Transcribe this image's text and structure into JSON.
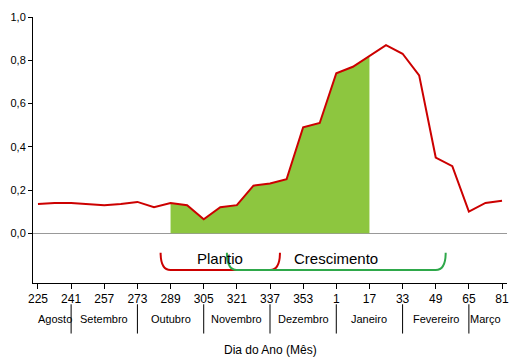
{
  "chart_data": {
    "type": "line",
    "x_label": "Dia do Ano (Mês)",
    "categories": [
      "225",
      null,
      "241",
      null,
      "257",
      null,
      "273",
      null,
      "289",
      null,
      "305",
      null,
      "321",
      null,
      "337",
      null,
      "353",
      null,
      "1",
      null,
      "17",
      null,
      "33",
      null,
      "49",
      null,
      "65",
      null,
      "81"
    ],
    "series": [
      {
        "type": "area",
        "color": "#8dc63f",
        "values": [
          null,
          null,
          null,
          null,
          null,
          null,
          null,
          null,
          0.14,
          0.13,
          0.065,
          0.12,
          0.13,
          0.22,
          0.23,
          0.25,
          0.49,
          0.51,
          0.74,
          0.77,
          0.82,
          null,
          null,
          null,
          null,
          null,
          null,
          null,
          null
        ]
      },
      {
        "type": "line",
        "color": "#cc0000",
        "values": [
          0.135,
          0.14,
          0.14,
          0.135,
          0.13,
          0.135,
          0.145,
          0.12,
          0.14,
          0.13,
          0.065,
          0.12,
          0.13,
          0.22,
          0.23,
          0.25,
          0.49,
          0.51,
          0.74,
          0.77,
          0.82,
          0.87,
          0.83,
          0.73,
          0.35,
          0.31,
          0.1,
          0.14,
          0.15
        ]
      }
    ],
    "ylim": [
      -0.23,
      1.0
    ],
    "yticks": [
      {
        "value": 0,
        "label": "0,0"
      },
      {
        "value": 0.2,
        "label": "0,2"
      },
      {
        "value": 0.4,
        "label": "0,4"
      },
      {
        "value": 0.6,
        "label": "0,6"
      },
      {
        "value": 0.8,
        "label": "0,8"
      },
      {
        "value": 1.0,
        "label": "1,0"
      }
    ],
    "grid": false,
    "annotations": [
      {
        "text": "Plantio",
        "from": "289",
        "to": "337",
        "color": "#cc0000"
      },
      {
        "text": "Crescimento",
        "from": "321",
        "to": "49",
        "color": "#2ea84a"
      }
    ],
    "months": [
      {
        "label": "Agosto",
        "from": "225",
        "to": "241"
      },
      {
        "label": "Setembro",
        "from": "241",
        "to": "273"
      },
      {
        "label": "Outubro",
        "from": "273",
        "to": "305"
      },
      {
        "label": "Novembro",
        "from": "305",
        "to": "337"
      },
      {
        "label": "Dezembro",
        "from": "337",
        "to": "1"
      },
      {
        "label": "Janeiro",
        "from": "1",
        "to": "33"
      },
      {
        "label": "Fevereiro",
        "from": "33",
        "to": "65"
      },
      {
        "label": "Março",
        "from": "65",
        "to": "81"
      }
    ]
  }
}
